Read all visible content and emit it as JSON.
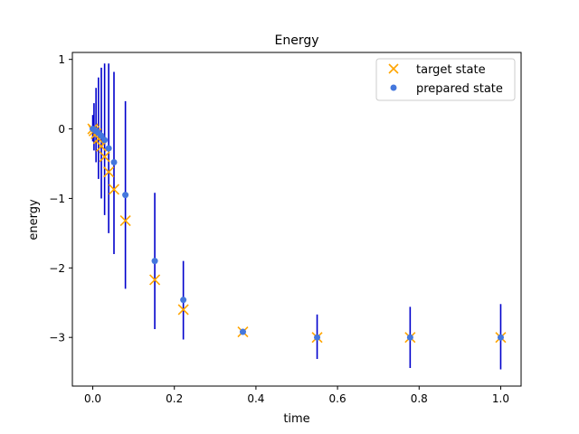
{
  "chart_data": {
    "type": "scatter",
    "title": "Energy",
    "xlabel": "time",
    "ylabel": "energy",
    "xlim": [
      -0.05,
      1.05
    ],
    "ylim": [
      -3.7,
      1.1
    ],
    "xticks": [
      0.0,
      0.2,
      0.4,
      0.6,
      0.8,
      1.0
    ],
    "xtick_labels": [
      "0.0",
      "0.2",
      "0.4",
      "0.6",
      "0.8",
      "1.0"
    ],
    "yticks": [
      1,
      0,
      -1,
      -2,
      -3
    ],
    "ytick_labels": [
      "1",
      "0",
      "−1",
      "−2",
      "−3"
    ],
    "grid": false,
    "legend_position": "top-right",
    "legend": {
      "target_label": "target state",
      "prepared_label": "prepared state"
    },
    "colors": {
      "target": "#ffa500",
      "prepared": "#4477dd",
      "errorbar": "#0000cc"
    },
    "target_state": {
      "x": [
        0.0,
        0.003,
        0.008,
        0.014,
        0.021,
        0.029,
        0.039,
        0.052,
        0.08,
        0.152,
        0.222,
        0.368,
        0.55,
        0.778,
        1.0
      ],
      "y": [
        0.0,
        -0.03,
        -0.07,
        -0.14,
        -0.25,
        -0.4,
        -0.62,
        -0.87,
        -1.32,
        -2.17,
        -2.6,
        -2.92,
        -3.0,
        -3.0,
        -3.0
      ]
    },
    "prepared_state": {
      "x": [
        0.0,
        0.003,
        0.008,
        0.014,
        0.021,
        0.029,
        0.039,
        0.052,
        0.08,
        0.152,
        0.222,
        0.368,
        0.55,
        0.778,
        1.0
      ],
      "y": [
        0.0,
        -0.01,
        -0.03,
        -0.06,
        -0.1,
        -0.16,
        -0.28,
        -0.48,
        -0.95,
        -1.9,
        -2.46,
        -2.92,
        -3.0,
        -3.0,
        -3.0
      ],
      "err_low": [
        0.18,
        0.3,
        0.45,
        0.66,
        0.9,
        1.08,
        1.22,
        1.32,
        1.35,
        0.98,
        0.57,
        0.03,
        0.31,
        0.44,
        0.46
      ],
      "err_high": [
        0.2,
        0.38,
        0.62,
        0.8,
        0.98,
        1.1,
        1.22,
        1.3,
        1.35,
        0.98,
        0.56,
        0.03,
        0.33,
        0.44,
        0.48
      ]
    }
  }
}
